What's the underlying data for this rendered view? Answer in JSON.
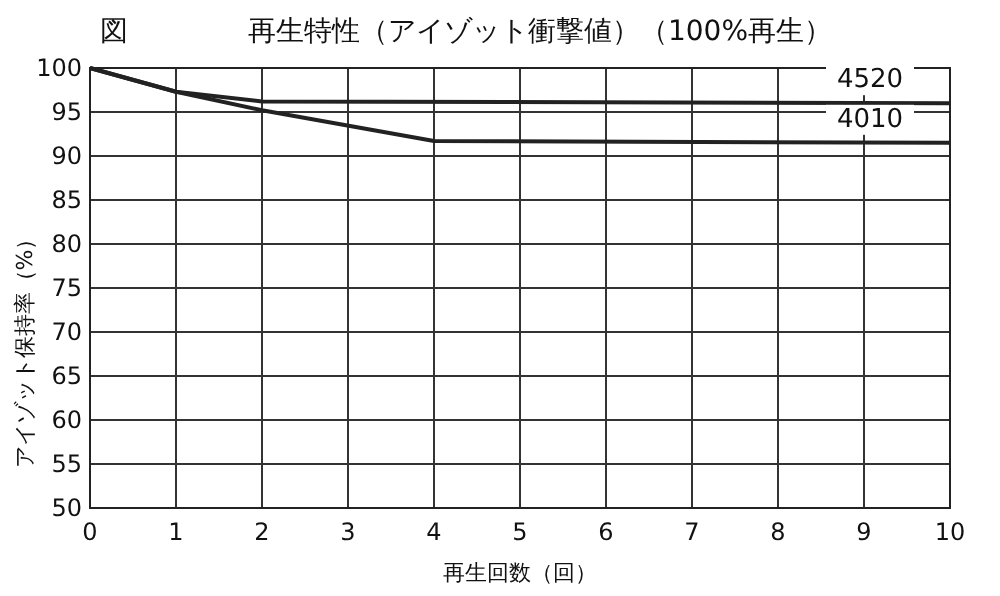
{
  "chart_data": {
    "type": "line",
    "title": "再生特性（アイゾット衝撃値）（100%再生）",
    "annotations": [
      "図"
    ],
    "xlabel": "再生回数（回）",
    "ylabel": "アイゾット保持率（%）",
    "xlim": [
      0,
      10
    ],
    "xticks": [
      0,
      1,
      2,
      3,
      4,
      5,
      6,
      7,
      8,
      9,
      10
    ],
    "ylim": [
      50,
      100
    ],
    "yticks": [
      50,
      55,
      60,
      65,
      70,
      75,
      80,
      85,
      90,
      95,
      100
    ],
    "grid": true,
    "marker": "none",
    "line_style": "solid",
    "series": [
      {
        "name": "4520",
        "color": "#222222",
        "x": [
          0,
          1,
          2,
          10
        ],
        "values": [
          100,
          97.3,
          96.2,
          96
        ]
      },
      {
        "name": "4010",
        "color": "#222222",
        "x": [
          0,
          1,
          2,
          4,
          10
        ],
        "values": [
          100,
          97.3,
          95.2,
          91.7,
          91.5
        ]
      }
    ]
  }
}
